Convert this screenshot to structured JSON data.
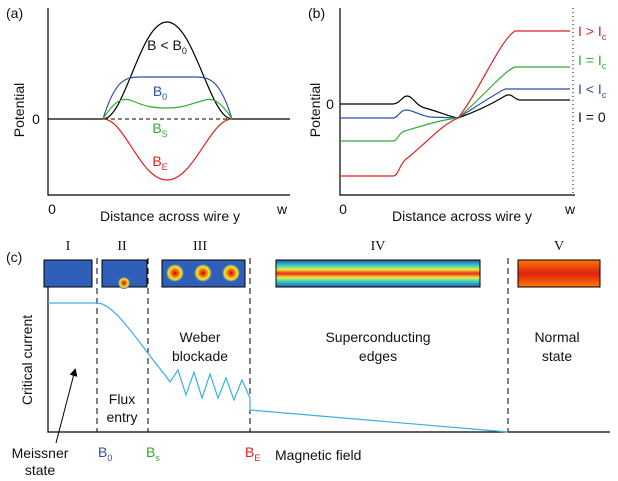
{
  "panel_a": {
    "label": "(a)",
    "y_axis": "Potential",
    "zero": "0",
    "x_start": "0",
    "x_end": "w",
    "x_axis": "Distance across wire y",
    "curves": [
      {
        "text": "B < B",
        "sub": "0"
      },
      {
        "text": "B",
        "sub": "0"
      },
      {
        "text": "B",
        "sub": "S"
      },
      {
        "text": "B",
        "sub": "E"
      }
    ]
  },
  "panel_b": {
    "label": "(b)",
    "y_axis": "Potential",
    "zero": "0",
    "x_start": "0",
    "x_end": "w",
    "x_axis": "Distance across wire y",
    "curves": [
      {
        "text": "I > I",
        "sub": "c"
      },
      {
        "text": "I = I",
        "sub": "c"
      },
      {
        "text": "I < I",
        "sub": "c"
      },
      {
        "text": "I = 0"
      }
    ]
  },
  "panel_c": {
    "label": "(c)",
    "y_axis": "Critical current",
    "x_axis": "Magnetic field",
    "regimes": [
      "I",
      "II",
      "III",
      "IV",
      "V"
    ],
    "notes": {
      "weber": [
        "Weber",
        "blockade"
      ],
      "edges": [
        "Superconducting",
        "edges"
      ],
      "normal": [
        "Normal",
        "state"
      ],
      "flux": [
        "Flux",
        "entry"
      ],
      "meissner": [
        "Meissner",
        "state"
      ]
    },
    "fields": [
      {
        "text": "B",
        "sub": "0"
      },
      {
        "text": "B",
        "sub": "s"
      },
      {
        "text": "B",
        "sub": "E"
      }
    ]
  }
}
